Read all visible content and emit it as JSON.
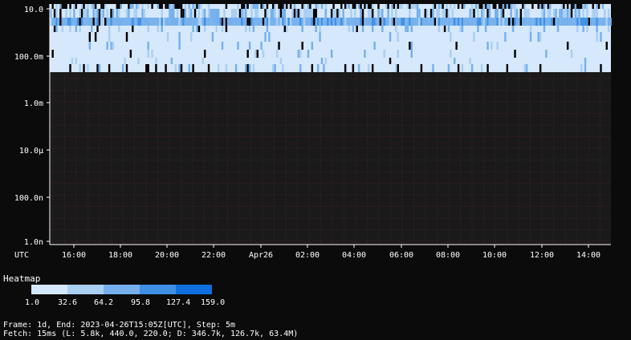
{
  "chart_data": {
    "type": "heatmap",
    "y_scale": "log",
    "y_ticks": [
      "10.0",
      "100.0m",
      "1.0m",
      "10.0µ",
      "100.0n",
      "1.0n"
    ],
    "x_ticks": [
      "16:00",
      "18:00",
      "20:00",
      "22:00",
      "Apr26",
      "02:00",
      "04:00",
      "06:00",
      "08:00",
      "10:00",
      "12:00",
      "14:00"
    ],
    "x_axis_label": "UTC",
    "grid": true,
    "populated_range": [
      "100.0m",
      "10.0"
    ],
    "buckets": [
      {
        "row": "~10",
        "dominant_count_bin": 1,
        "note": "light blue with many dark gaps"
      },
      {
        "row": "~5",
        "dominant_count_bin": 2,
        "note": "medium-dark blue band, highest density"
      },
      {
        "row": "~1",
        "dominant_count_bin": 1,
        "note": "light blue, sparse gaps"
      },
      {
        "row": "~0.2",
        "dominant_count_bin": 1,
        "note": "light blue, sparse gaps"
      },
      {
        "row": "~0.05",
        "dominant_count_bin": 1,
        "note": "light blue with many dark gaps"
      }
    ]
  },
  "legend": {
    "title": "Heatmap",
    "stops": [
      "1.0",
      "32.6",
      "64.2",
      "95.8",
      "127.4",
      "159.0"
    ],
    "colors": [
      "#d6e8fb",
      "#a9cff3",
      "#75b0ed",
      "#3f8fe4",
      "#0f6fdd"
    ]
  },
  "colors": {
    "background": "#0b0b0b",
    "grid": "#6a2a2a",
    "axis": "#ffffff",
    "empty": "#1a1a1a"
  },
  "footer": {
    "line1": "Frame: 1d, End: 2023-04-26T15:05Z[UTC], Step: 5m",
    "line2": "Fetch: 15ms (L: 5.8k, 440.0, 220.0; D: 346.7k, 126.7k, 63.4M)"
  }
}
